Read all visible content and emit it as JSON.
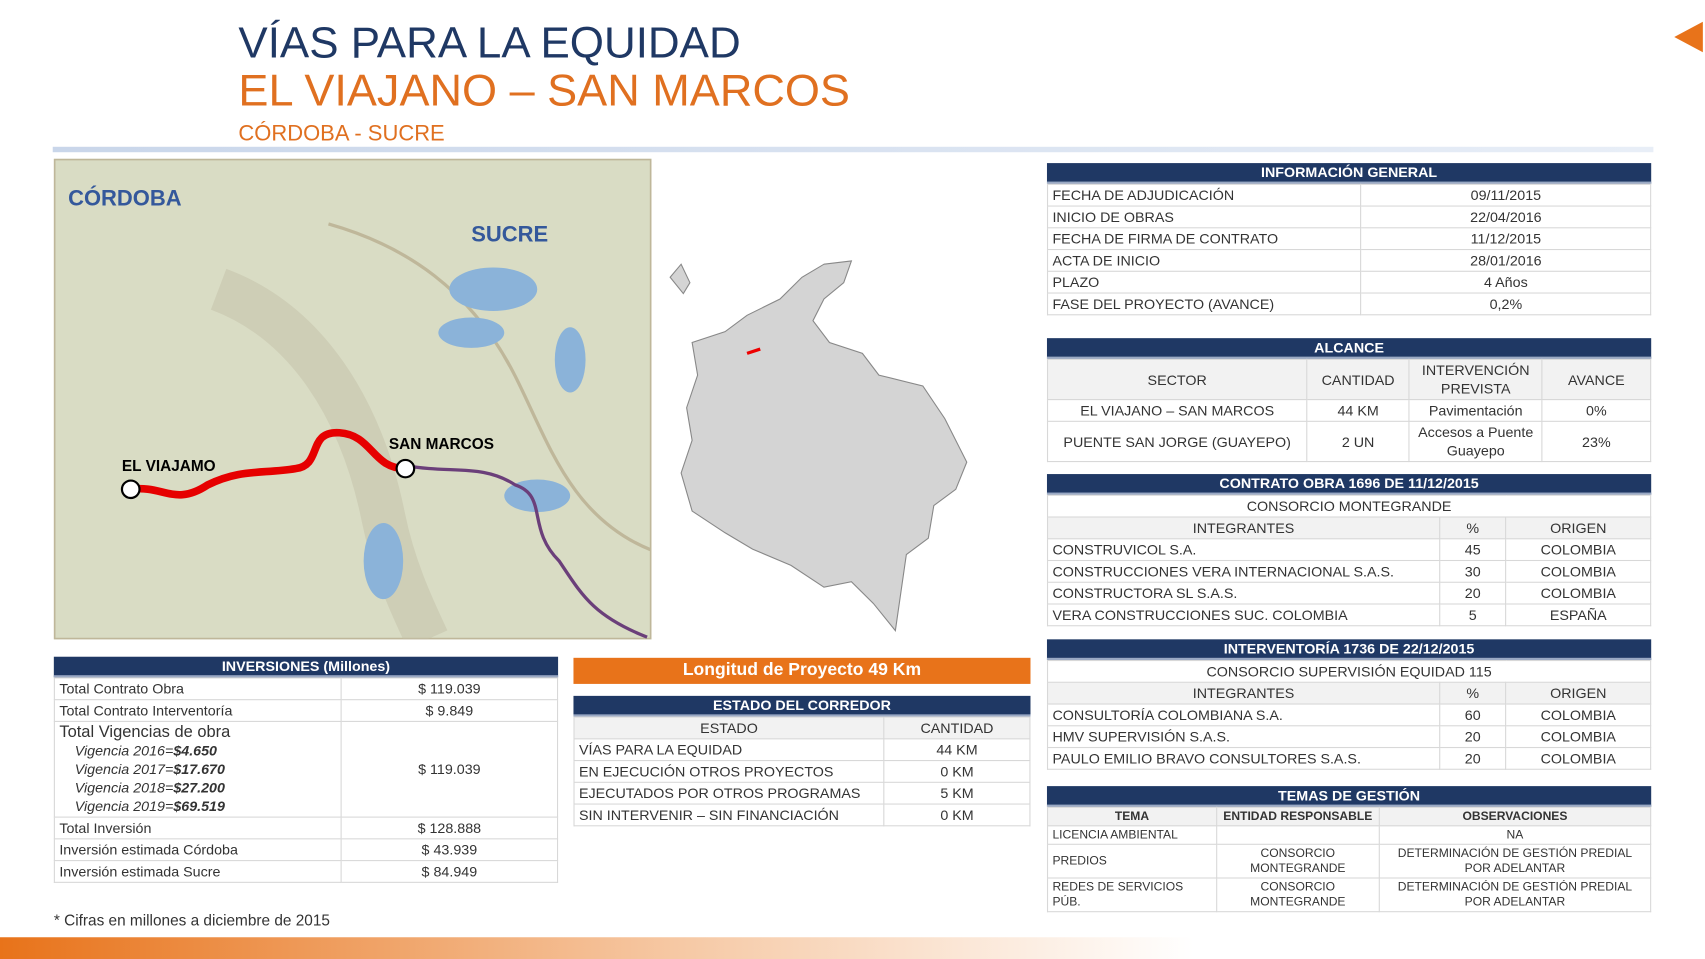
{
  "header": {
    "title": "VÍAS PARA LA EQUIDAD",
    "subtitle": "EL VIAJANO – SAN MARCOS",
    "region": "CÓRDOBA - SUCRE"
  },
  "map": {
    "labels": [
      "CÓRDOBA",
      "SUCRE",
      "EL VIAJAMO",
      "SAN MARCOS"
    ]
  },
  "info_general": {
    "title": "INFORMACIÓN GENERAL",
    "rows": [
      [
        "FECHA DE ADJUDICACIÓN",
        "09/11/2015"
      ],
      [
        "INICIO DE OBRAS",
        "22/04/2016"
      ],
      [
        "FECHA DE FIRMA DE CONTRATO",
        "11/12/2015"
      ],
      [
        "ACTA DE INICIO",
        "28/01/2016"
      ],
      [
        "PLAZO",
        "4 Años"
      ],
      [
        "FASE DEL PROYECTO (AVANCE)",
        "0,2%"
      ]
    ]
  },
  "alcance": {
    "title": "ALCANCE",
    "columns": [
      "SECTOR",
      "CANTIDAD",
      "INTERVENCIÓN PREVISTA",
      "AVANCE"
    ],
    "rows": [
      [
        "EL VIAJANO – SAN MARCOS",
        "44 KM",
        "Pavimentación",
        "0%"
      ],
      [
        "PUENTE SAN JORGE (GUAYEPO)",
        "2 UN",
        "Accesos  a Puente Guayepo",
        "23%"
      ]
    ]
  },
  "contrato": {
    "title": "CONTRATO OBRA 1696 DE 11/12/2015",
    "consortium": "CONSORCIO MONTEGRANDE",
    "columns": [
      "INTEGRANTES",
      "%",
      "ORIGEN"
    ],
    "rows": [
      [
        "CONSTRUVICOL S.A.",
        "45",
        "COLOMBIA"
      ],
      [
        "CONSTRUCCIONES  VERA INTERNACIONAL  S.A.S.",
        "30",
        "COLOMBIA"
      ],
      [
        "CONSTRUCTORA  SL S.A.S.",
        "20",
        "COLOMBIA"
      ],
      [
        "VERA CONSTRUCCIONES  SUC. COLOMBIA",
        "5",
        "ESPAÑA"
      ]
    ]
  },
  "interventoria": {
    "title": "INTERVENTORÍA  1736 DE 22/12/2015",
    "consortium": "CONSORCIO SUPERVISIÓN  EQUIDAD 115",
    "columns": [
      "INTEGRANTES",
      "%",
      "ORIGEN"
    ],
    "rows": [
      [
        "CONSULTORÍA COLOMBIANA S.A.",
        "60",
        "COLOMBIA"
      ],
      [
        "HMV SUPERVISIÓN S.A.S.",
        "20",
        "COLOMBIA"
      ],
      [
        "PAULO EMILIO BRAVO CONSULTORES S.A.S.",
        "20",
        "COLOMBIA"
      ]
    ]
  },
  "temas": {
    "title": "TEMAS  DE GESTIÓN",
    "columns": [
      "TEMA",
      "ENTIDAD RESPONSABLE",
      "OBSERVACIONES"
    ],
    "rows": [
      [
        "LICENCIA AMBIENTAL",
        "",
        "NA"
      ],
      [
        "PREDIOS",
        "CONSORCIO MONTEGRANDE",
        "DETERMINACIÓN DE GESTIÓN PREDIAL POR ADELANTAR"
      ],
      [
        "REDES DE SERVICIOS PÚB.",
        "CONSORCIO MONTEGRANDE",
        "DETERMINACIÓN DE GESTIÓN PREDIAL POR ADELANTAR"
      ]
    ]
  },
  "inversiones": {
    "title": "INVERSIONES (Millones)",
    "rows": [
      [
        "Total Contrato Obra",
        "$ 119.039"
      ],
      [
        "Total Contrato Interventoría",
        "$ 9.849"
      ]
    ],
    "vigencias": {
      "label": "Total Vigencias de obra",
      "value": "$ 119.039",
      "items": [
        [
          "Vigencia 2016=",
          "$4.650"
        ],
        [
          "Vigencia 2017=",
          "$17.670"
        ],
        [
          "Vigencia 2018=",
          "$27.200"
        ],
        [
          "Vigencia 2019=",
          "$69.519"
        ]
      ]
    },
    "totals": [
      [
        "Total Inversión",
        "$ 128.888"
      ],
      [
        "Inversión estimada Córdoba",
        "$ 43.939"
      ],
      [
        "Inversión estimada  Sucre",
        "$ 84.949"
      ]
    ]
  },
  "longitud": "Longitud  de Proyecto  49 Km",
  "estado": {
    "title": "ESTADO DEL CORREDOR",
    "columns": [
      "ESTADO",
      "CANTIDAD"
    ],
    "rows": [
      [
        "VÍAS PARA LA EQUIDAD",
        "44 KM"
      ],
      [
        "EN EJECUCIÓN  OTROS  PROYECTOS",
        "0 KM"
      ],
      [
        "EJECUTADOS  POR OTROS PROGRAMAS",
        "5 KM"
      ],
      [
        "SIN INTERVENIR  – SIN FINANCIACIÓN",
        "0 KM"
      ]
    ]
  },
  "footnote": "* Cifras en  millones a diciembre de 2015"
}
